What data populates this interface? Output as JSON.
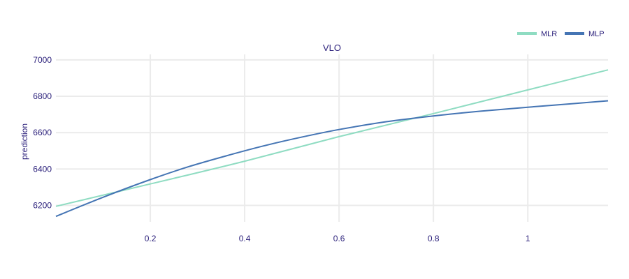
{
  "chart_data": {
    "type": "line",
    "title": "VLO",
    "xlabel": "",
    "ylabel": "prediction",
    "xlim": [
      0.0,
      1.17
    ],
    "ylim": [
      6110,
      7030
    ],
    "x_ticks": [
      0.2,
      0.4,
      0.6,
      0.8,
      1.0
    ],
    "x_tick_labels": [
      "0.2",
      "0.4",
      "0.6",
      "0.8",
      "1"
    ],
    "y_ticks": [
      6200,
      6400,
      6600,
      6800,
      7000
    ],
    "y_tick_labels": [
      "6200",
      "6400",
      "6600",
      "6800",
      "7000"
    ],
    "grid": true,
    "legend_position": "top-right",
    "series": [
      {
        "name": "MLR",
        "color": "#8fdcc2",
        "x": [
          0.0,
          0.2,
          0.4,
          0.6,
          0.8,
          1.0,
          1.17
        ],
        "y": [
          6195,
          6318,
          6443,
          6578,
          6705,
          6835,
          6945
        ]
      },
      {
        "name": "MLP",
        "color": "#4575b4",
        "x": [
          0.0,
          0.1,
          0.2,
          0.28,
          0.36,
          0.44,
          0.52,
          0.6,
          0.7,
          0.8,
          0.9,
          1.0,
          1.1,
          1.17
        ],
        "y": [
          6140,
          6245,
          6342,
          6412,
          6472,
          6527,
          6575,
          6617,
          6660,
          6692,
          6718,
          6740,
          6760,
          6775
        ]
      }
    ]
  }
}
